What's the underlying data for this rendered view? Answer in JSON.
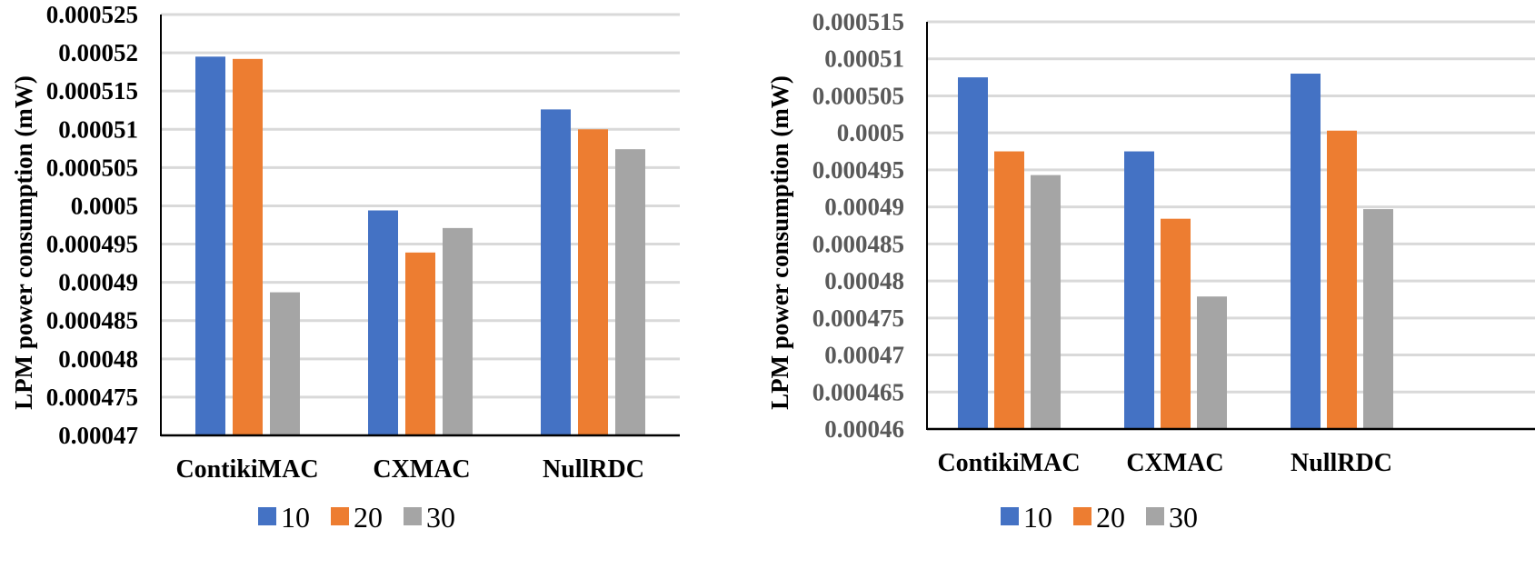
{
  "colors": {
    "s10": "#4472C4",
    "s20": "#ED7D31",
    "s30": "#A5A5A5",
    "grid": "#D9D9D9",
    "axis": "#000000"
  },
  "chart_data": [
    {
      "type": "bar",
      "title": "",
      "xlabel": "",
      "ylabel": "LPM power consumption (mW)",
      "categories": [
        "ContikiMAC",
        "CXMAC",
        "NullRDC"
      ],
      "ylim": [
        0.00047,
        0.000525
      ],
      "yticks": [
        "0.00047",
        "0.000475",
        "0.00048",
        "0.000485",
        "0.00049",
        "0.000495",
        "0.0005",
        "0.000505",
        "0.00051",
        "0.000515",
        "0.00052",
        "0.000525"
      ],
      "series": [
        {
          "name": "10",
          "values": [
            0.0005195,
            0.0004994,
            0.0005126
          ]
        },
        {
          "name": "20",
          "values": [
            0.0005192,
            0.0004939,
            0.00051
          ]
        },
        {
          "name": "30",
          "values": [
            0.0004887,
            0.0004971,
            0.0005074
          ]
        }
      ],
      "legend": "bottom"
    },
    {
      "type": "bar",
      "title": "",
      "xlabel": "",
      "ylabel": "LPM power consumption (mW)",
      "categories": [
        "ContikiMAC",
        "CXMAC",
        "NullRDC"
      ],
      "ylim": [
        0.00046,
        0.000515
      ],
      "yticks": [
        "0.00046",
        "0.000465",
        "0.00047",
        "0.000475",
        "0.00048",
        "0.000485",
        "0.00049",
        "0.000495",
        "0.0005",
        "0.000505",
        "0.00051",
        "0.000515"
      ],
      "series": [
        {
          "name": "10",
          "values": [
            0.0005075,
            0.0004975,
            0.000508
          ]
        },
        {
          "name": "20",
          "values": [
            0.0004975,
            0.0004884,
            0.0005003
          ]
        },
        {
          "name": "30",
          "values": [
            0.0004943,
            0.0004779,
            0.0004897
          ]
        }
      ],
      "legend": "bottom"
    }
  ]
}
